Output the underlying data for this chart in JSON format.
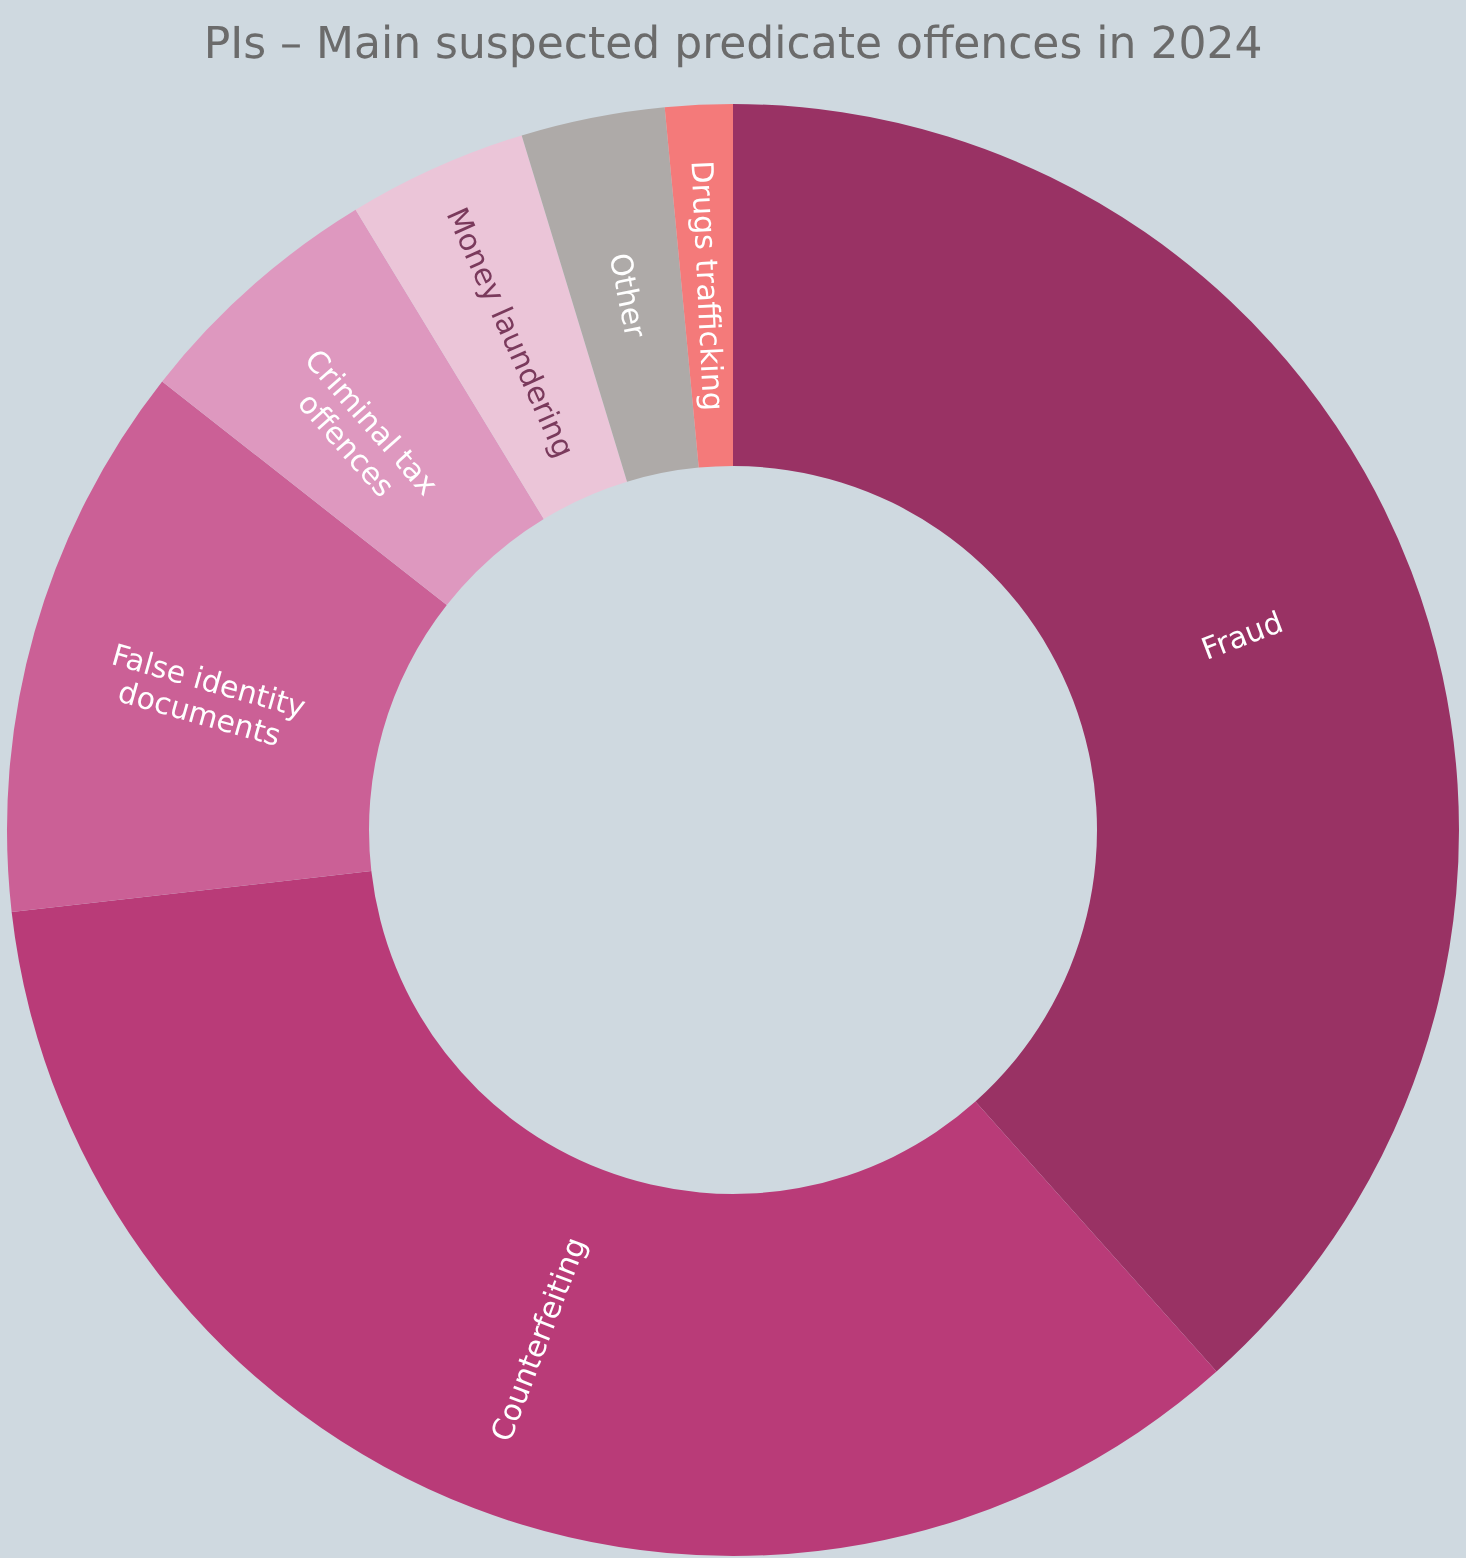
{
  "chart_data": {
    "type": "donut",
    "title": "PIs – Main suspected predicate offences in 2024",
    "categories": [
      "Fraud",
      "Counterfeiting",
      "False identity\ndocuments",
      "Criminal tax\noffences",
      "Money laundering",
      "Other",
      "Drugs trafficking"
    ],
    "values": [
      38.4,
      34.8,
      12.4,
      5.7,
      4.0,
      3.2,
      1.5
    ],
    "colors": [
      "#993264",
      "#b93b78",
      "#cb6096",
      "#de98bf",
      "#ebc5d8",
      "#aeaaa8",
      "#f47a7a"
    ]
  }
}
